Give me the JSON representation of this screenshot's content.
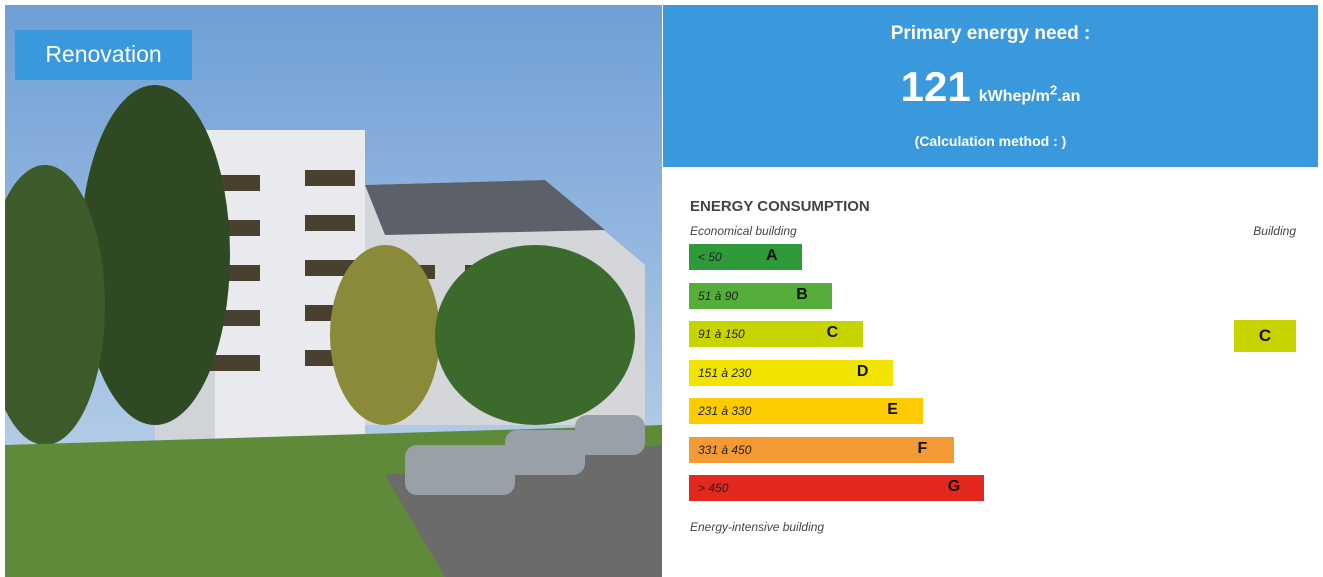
{
  "badge": "Renovation",
  "header": {
    "title": "Primary energy need :",
    "value": "121",
    "unit": "kWhep/m",
    "unit_sup": "2",
    "unit_suffix": ".an",
    "method": "(Calculation method : )"
  },
  "section": {
    "title": "ENERGY CONSUMPTION",
    "top_left": "Economical building",
    "top_right": "Building",
    "bottom": "Energy-intensive building"
  },
  "classes": [
    {
      "range": "< 50",
      "letter": "A",
      "color": "#2e9a3a"
    },
    {
      "range": "51 à 90",
      "letter": "B",
      "color": "#55ae3a"
    },
    {
      "range": "91 à 150",
      "letter": "C",
      "color": "#c8d400"
    },
    {
      "range": "151 à 230",
      "letter": "D",
      "color": "#f0e400"
    },
    {
      "range": "231 à 330",
      "letter": "E",
      "color": "#fccc00"
    },
    {
      "range": "331 à 450",
      "letter": "F",
      "color": "#f39a35"
    },
    {
      "range": "> 450",
      "letter": "G",
      "color": "#e3281f"
    }
  ],
  "current": {
    "letter": "C",
    "color": "#c8d400"
  }
}
